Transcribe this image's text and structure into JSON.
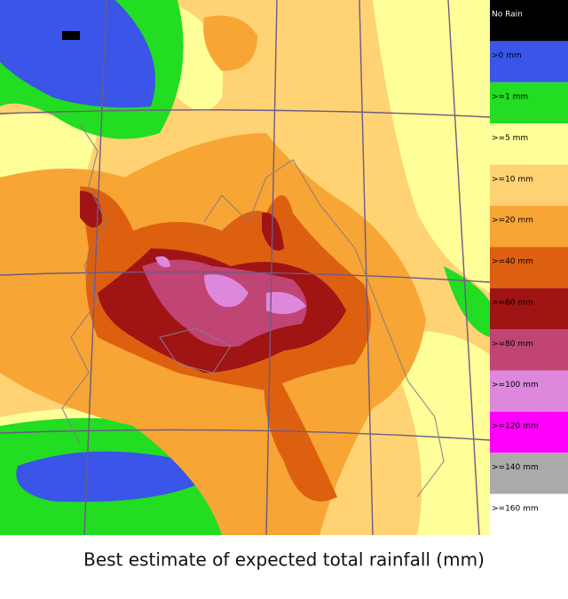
{
  "legend": {
    "items": [
      {
        "label": "No Rain",
        "color": "#000000"
      },
      {
        "label": ">0 mm",
        "color": "#3a55e8"
      },
      {
        "label": ">=1 mm",
        "color": "#22dd22"
      },
      {
        "label": ">=5 mm",
        "color": "#ffff99"
      },
      {
        "label": ">=10 mm",
        "color": "#ffd273"
      },
      {
        "label": ">=20 mm",
        "color": "#f7a534"
      },
      {
        "label": ">=40 mm",
        "color": "#dd6010"
      },
      {
        "label": ">=60 mm",
        "color": "#a01414"
      },
      {
        "label": ">=80 mm",
        "color": "#c04474"
      },
      {
        "label": ">=100 mm",
        "color": "#dd88dd"
      },
      {
        "label": ">=120 mm",
        "color": "#ff00ff"
      },
      {
        "label": ">=140 mm",
        "color": "#aaaaaa"
      },
      {
        "label": ">=160 mm",
        "color": "#ffffff"
      }
    ]
  },
  "caption": "Best estimate of expected total rainfall (mm)"
}
